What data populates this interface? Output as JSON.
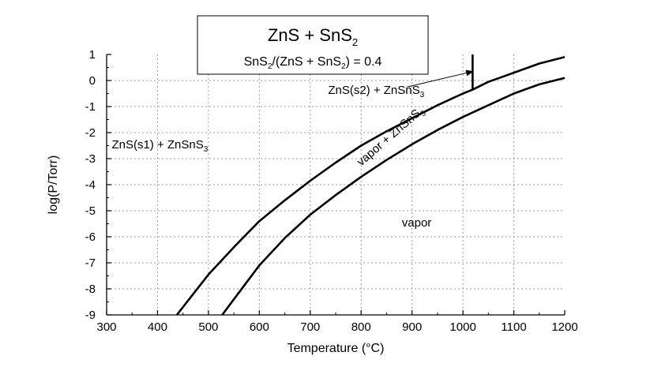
{
  "chart_data": {
    "type": "line",
    "xlabel": "Temperature (°C)",
    "ylabel": "log(P/Torr)",
    "xlim": [
      300,
      1200
    ],
    "ylim": [
      -9,
      1
    ],
    "xticks": [
      300,
      400,
      500,
      600,
      700,
      800,
      900,
      1000,
      1100,
      1200
    ],
    "yticks": [
      1,
      0,
      -1,
      -2,
      -3,
      -4,
      -5,
      -6,
      -7,
      -8,
      -9
    ],
    "grid": true,
    "title_box": {
      "title_main": "ZnS + SnS",
      "title_sub": "2",
      "ratio_parts": [
        "SnS",
        "2",
        "/(ZnS + SnS",
        "2",
        ") = 0.4"
      ]
    },
    "series": [
      {
        "x": [
          438,
          500,
          550,
          600,
          650,
          700,
          750,
          800,
          850,
          900,
          950,
          1000,
          1019,
          1050,
          1100,
          1150,
          1200
        ],
        "y": [
          -9,
          -7.45,
          -6.4,
          -5.4,
          -4.6,
          -3.85,
          -3.15,
          -2.5,
          -1.95,
          -1.45,
          -0.95,
          -0.5,
          -0.35,
          -0.05,
          0.3,
          0.65,
          0.9
        ]
      },
      {
        "x": [
          527,
          550,
          600,
          650,
          700,
          750,
          800,
          850,
          900,
          950,
          1000,
          1050,
          1100,
          1150,
          1200
        ],
        "y": [
          -9,
          -8.4,
          -7.1,
          -6.05,
          -5.15,
          -4.4,
          -3.7,
          -3.05,
          -2.45,
          -1.9,
          -1.4,
          -0.95,
          -0.5,
          -0.15,
          0.1
        ]
      }
    ],
    "vertical_marker": {
      "x": 1019,
      "y_from": -0.35,
      "y_to": 1
    },
    "annotation_arrow": {
      "from": [
        890,
        -0.25
      ],
      "to": [
        1020,
        0.35
      ]
    },
    "regions": [
      {
        "parts": [
          "ZnS(s1) + ZnSnS",
          "3"
        ],
        "x": 310,
        "y": -2.6,
        "rotate": 0
      },
      {
        "parts": [
          "ZnS(s2) + ZnSnS",
          "3"
        ],
        "x": 735,
        "y": -0.52,
        "rotate": 0
      },
      {
        "parts": [
          "vapor + ZnSnS",
          "3"
        ],
        "x": 800,
        "y": -3.3,
        "rotate": -41
      },
      {
        "parts": [
          "vapor"
        ],
        "x": 880,
        "y": -5.6,
        "rotate": 0
      }
    ]
  }
}
